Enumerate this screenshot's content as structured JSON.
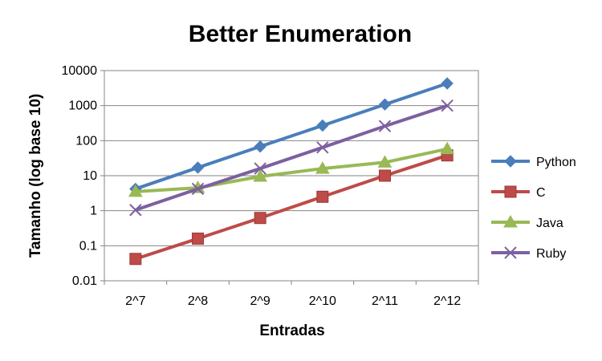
{
  "chart_data": {
    "type": "line",
    "title": "Better Enumeration",
    "xlabel": "Entradas",
    "ylabel": "Tamanho (log base 10)",
    "categories": [
      "2^7",
      "2^8",
      "2^9",
      "2^10",
      "2^11",
      "2^12"
    ],
    "y_scale": "log10",
    "ylim": [
      0.01,
      10000
    ],
    "y_ticks": [
      0.01,
      0.1,
      1,
      10,
      100,
      1000,
      10000
    ],
    "y_tick_labels": [
      "0.01",
      "0.1",
      "1",
      "10",
      "100",
      "1000",
      "10000"
    ],
    "grid": true,
    "legend_position": "right",
    "series": [
      {
        "name": "Python",
        "color": "#4A7EBB",
        "marker": "diamond",
        "values": [
          4.2,
          17,
          68,
          270,
          1080,
          4300
        ]
      },
      {
        "name": "C",
        "color": "#BE4B48",
        "marker": "square",
        "values": [
          0.042,
          0.16,
          0.62,
          2.5,
          10,
          38
        ]
      },
      {
        "name": "Java",
        "color": "#98B954",
        "marker": "triangle",
        "values": [
          3.5,
          4.5,
          9.5,
          16,
          24,
          58
        ]
      },
      {
        "name": "Ruby",
        "color": "#7D60A0",
        "marker": "x",
        "values": [
          1.05,
          4.2,
          16,
          64,
          260,
          1000
        ]
      }
    ]
  }
}
